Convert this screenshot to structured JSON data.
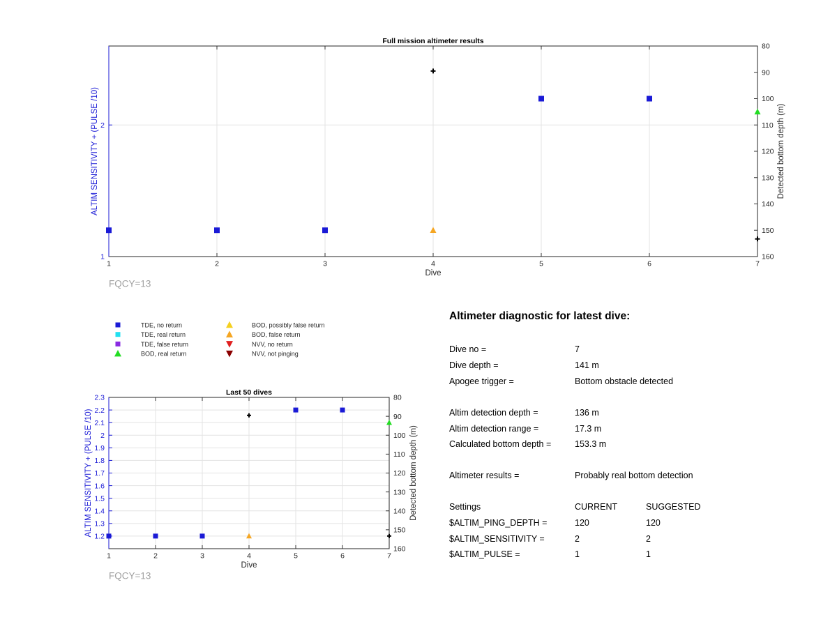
{
  "chart_data": [
    {
      "type": "scatter",
      "title": "Full mission altimeter results",
      "xlabel": "Dive",
      "ylabel_left": "ALTIM SENSITIVITY + (PULSE /10)",
      "ylabel_right": "Detected bottom depth (m)",
      "x_ticks": [
        "1",
        "2",
        "3",
        "4",
        "5",
        "6",
        "7"
      ],
      "yleft_ticks": [
        "1",
        "2"
      ],
      "yright_ticks": [
        "80",
        "90",
        "100",
        "110",
        "120",
        "130",
        "140",
        "150",
        "160"
      ],
      "xlim": [
        1,
        7
      ],
      "ylim_left": [
        1,
        2.6
      ],
      "ylim_right": [
        80,
        160
      ],
      "right_axis_reversed": true,
      "grid": true,
      "annotation": "FQCY=13",
      "series": [
        {
          "name": "TDE, no return",
          "color": "#1a1ad6",
          "marker": "square",
          "axis": "left",
          "points": [
            [
              1,
              1.2
            ],
            [
              2,
              1.2
            ],
            [
              3,
              1.2
            ],
            [
              5,
              2.2
            ],
            [
              6,
              2.2
            ]
          ]
        },
        {
          "name": "BOD, false return",
          "color": "#f5a623",
          "marker": "triangle-up",
          "axis": "left",
          "points": [
            [
              4,
              1.2
            ]
          ]
        },
        {
          "name": "BOD, real return",
          "color": "#22dd22",
          "marker": "triangle-up",
          "axis": "left",
          "points": [
            [
              7,
              2.1
            ]
          ]
        },
        {
          "color": "#000000",
          "marker": "plus",
          "axis": "right",
          "points": [
            [
              4,
              89.5
            ],
            [
              7,
              153.3
            ]
          ]
        }
      ]
    },
    {
      "type": "scatter",
      "title": "Last 50 dives",
      "xlabel": "Dive",
      "ylabel_left": "ALTIM SENSITIVITY + (PULSE /10)",
      "ylabel_right": "Detected bottom depth (m)",
      "x_ticks": [
        "1",
        "2",
        "3",
        "4",
        "5",
        "6",
        "7"
      ],
      "yleft_ticks": [
        "1.2",
        "1.3",
        "1.4",
        "1.5",
        "1.6",
        "1.7",
        "1.8",
        "1.9",
        "2",
        "2.1",
        "2.2",
        "2.3"
      ],
      "yright_ticks": [
        "80",
        "90",
        "100",
        "110",
        "120",
        "130",
        "140",
        "150",
        "160"
      ],
      "xlim": [
        1,
        7
      ],
      "ylim_left": [
        1.1,
        2.3
      ],
      "ylim_right": [
        80,
        160
      ],
      "right_axis_reversed": true,
      "grid": true,
      "annotation": "FQCY=13",
      "series": [
        {
          "name": "TDE, no return",
          "color": "#1a1ad6",
          "marker": "square",
          "axis": "left",
          "points": [
            [
              1,
              1.2
            ],
            [
              2,
              1.2
            ],
            [
              3,
              1.2
            ],
            [
              5,
              2.2
            ],
            [
              6,
              2.2
            ]
          ]
        },
        {
          "name": "BOD, false return",
          "color": "#f5a623",
          "marker": "triangle-up",
          "axis": "left",
          "points": [
            [
              4,
              1.2
            ]
          ]
        },
        {
          "name": "BOD, real return",
          "color": "#22dd22",
          "marker": "triangle-up",
          "axis": "left",
          "points": [
            [
              7,
              2.1
            ]
          ]
        },
        {
          "color": "#000000",
          "marker": "plus",
          "axis": "right",
          "points": [
            [
              4,
              89.5
            ],
            [
              7,
              153.3
            ]
          ]
        }
      ]
    }
  ],
  "legend": [
    {
      "label": "TDE, no return",
      "color": "#1a1ad6",
      "marker": "square"
    },
    {
      "label": "TDE, real return",
      "color": "#22e0f0",
      "marker": "square"
    },
    {
      "label": "TDE, false return",
      "color": "#8a2be2",
      "marker": "square"
    },
    {
      "label": "BOD, real return",
      "color": "#22dd22",
      "marker": "triangle-up"
    },
    {
      "label": "BOD, possibly false return",
      "color": "#f5d020",
      "marker": "triangle-up"
    },
    {
      "label": "BOD, false return",
      "color": "#f5a623",
      "marker": "triangle-up"
    },
    {
      "label": "NVV, no return",
      "color": "#e02020",
      "marker": "triangle-down"
    },
    {
      "label": "NVV, not pinging",
      "color": "#8b0000",
      "marker": "triangle-down"
    }
  ],
  "diagnostic": {
    "title": "Altimeter diagnostic for latest dive:",
    "dive_no_label": "Dive no =",
    "dive_no": "7",
    "dive_depth_label": "Dive depth =",
    "dive_depth": "141 m",
    "apogee_label": "Apogee trigger =",
    "apogee": "Bottom obstacle detected",
    "det_depth_label": "Altim detection depth =",
    "det_depth": "136 m",
    "det_range_label": "Altim detection range =",
    "det_range": "17.3 m",
    "calc_depth_label": "Calculated bottom depth =",
    "calc_depth": "153.3 m",
    "results_label": "Altimeter results =",
    "results": "Probably real bottom detection",
    "settings_label": "Settings",
    "current_label": "CURRENT",
    "suggested_label": "SUGGESTED",
    "ping_label": "$ALTIM_PING_DEPTH =",
    "ping_current": "120",
    "ping_suggested": "120",
    "sens_label": "$ALTIM_SENSITIVITY =",
    "sens_current": "2",
    "sens_suggested": "2",
    "pulse_label": "$ALTIM_PULSE =",
    "pulse_current": "1",
    "pulse_suggested": "1"
  }
}
